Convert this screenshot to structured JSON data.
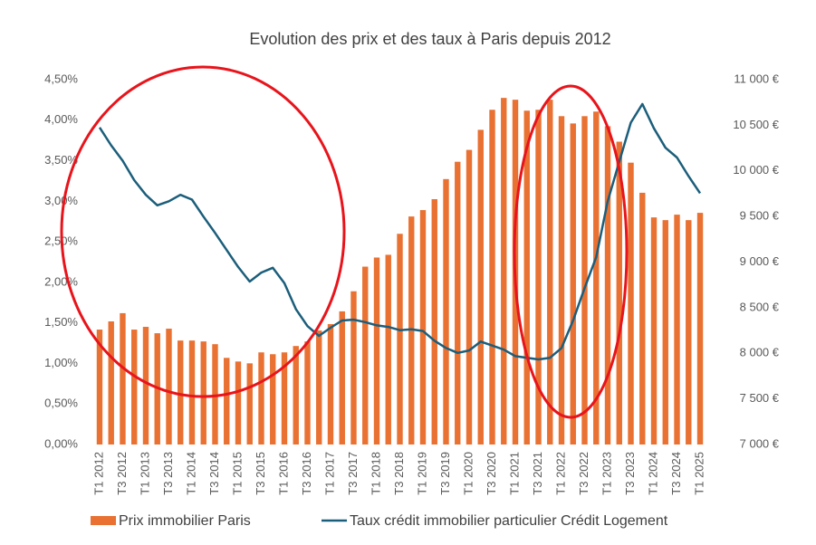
{
  "chart_data": {
    "type": "bar_line",
    "title": "Evolution des prix et des taux à Paris depuis 2012",
    "categories": [
      "T1 2012",
      null,
      "T3 2012",
      null,
      "T1 2013",
      null,
      "T3 2013",
      null,
      "T1 2014",
      null,
      "T3 2014",
      null,
      "T1 2015",
      null,
      "T3 2015",
      null,
      "T1 2016",
      null,
      "T3 2016",
      null,
      "T1 2017",
      null,
      "T3 2017",
      null,
      "T1 2018",
      null,
      "T3 2018",
      null,
      "T1 2019",
      null,
      "T3 2019",
      null,
      "T1 2020",
      null,
      "T3 2020",
      null,
      "T1 2021",
      null,
      "T3 2021",
      null,
      "T1 2022",
      null,
      "T3 2022",
      null,
      "T1 2023",
      null,
      "T3 2023",
      null,
      "T1 2024",
      null,
      "T3 2024",
      null,
      "T1 2025"
    ],
    "series": [
      {
        "name": "Prix immobilier Paris",
        "type": "bar",
        "axis": "y2",
        "color": "#e97132",
        "values": [
          8260,
          8350,
          8440,
          8260,
          8290,
          8220,
          8270,
          8140,
          8140,
          8130,
          8100,
          7950,
          7910,
          7890,
          8010,
          7990,
          8010,
          8080,
          8130,
          8250,
          8320,
          8460,
          8680,
          8950,
          9050,
          9080,
          9310,
          9500,
          9570,
          9690,
          9910,
          10100,
          10230,
          10450,
          10670,
          10800,
          10780,
          10660,
          10670,
          10780,
          10600,
          10520,
          10600,
          10650,
          10490,
          10320,
          10090,
          9760,
          9490,
          9460,
          9520,
          9460,
          9540
        ]
      },
      {
        "name": "Taux crédit immobilier particulier Crédit Logement",
        "type": "line",
        "axis": "y",
        "color": "#1b5e7b",
        "values": [
          3.91,
          3.69,
          3.5,
          3.26,
          3.08,
          2.95,
          3.0,
          3.08,
          3.02,
          2.81,
          2.61,
          2.4,
          2.19,
          2.01,
          2.12,
          2.18,
          1.99,
          1.67,
          1.46,
          1.34,
          1.44,
          1.53,
          1.54,
          1.51,
          1.47,
          1.45,
          1.41,
          1.42,
          1.4,
          1.28,
          1.19,
          1.13,
          1.16,
          1.27,
          1.22,
          1.17,
          1.09,
          1.07,
          1.05,
          1.07,
          1.19,
          1.53,
          1.93,
          2.31,
          3.0,
          3.49,
          3.97,
          4.2,
          3.9,
          3.66,
          3.54,
          3.31,
          3.1
        ]
      }
    ],
    "ylim": [
      0,
      4.5
    ],
    "yticks": [
      {
        "value": 0,
        "label": "0,00%"
      },
      {
        "value": 0.5,
        "label": "0,50%"
      },
      {
        "value": 1,
        "label": "1,00%"
      },
      {
        "value": 1.5,
        "label": "1,50%"
      },
      {
        "value": 2,
        "label": "2,00%"
      },
      {
        "value": 2.5,
        "label": "2,50%"
      },
      {
        "value": 3,
        "label": "3,00%"
      },
      {
        "value": 3.5,
        "label": "3,50%"
      },
      {
        "value": 4,
        "label": "4,00%"
      },
      {
        "value": 4.5,
        "label": "4,50%"
      }
    ],
    "y2lim": [
      7000,
      11000
    ],
    "y2ticks": [
      {
        "value": 7000,
        "label": "7 000 €"
      },
      {
        "value": 7500,
        "label": "7 500 €"
      },
      {
        "value": 8000,
        "label": "8 000 €"
      },
      {
        "value": 8500,
        "label": "8 500 €"
      },
      {
        "value": 9000,
        "label": "9 000 €"
      },
      {
        "value": 9500,
        "label": "9 500 €"
      },
      {
        "value": 10000,
        "label": "10 000 €"
      },
      {
        "value": 10500,
        "label": "10 500 €"
      },
      {
        "value": 11000,
        "label": "11 000 €"
      }
    ]
  }
}
